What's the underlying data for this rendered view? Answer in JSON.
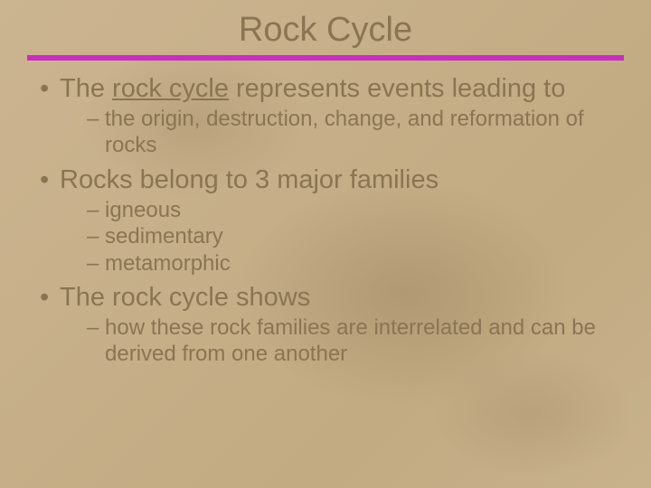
{
  "slide": {
    "title": "Rock Cycle",
    "accent_color": "#c72fbf",
    "text_color": "#8a7452",
    "background_base": "#c9b38e",
    "title_fontsize": 38,
    "bullet_fontsize": 29,
    "sub_fontsize": 24,
    "bullets": [
      {
        "pre": "The ",
        "underlined": "rock cycle",
        "post": " represents events leading to",
        "subs": [
          "the origin, destruction, change, and reformation of rocks"
        ]
      },
      {
        "pre": "Rocks belong to 3 major families",
        "underlined": "",
        "post": "",
        "subs": [
          "igneous",
          "sedimentary",
          "metamorphic"
        ]
      },
      {
        "pre": "The rock cycle shows",
        "underlined": "",
        "post": "",
        "subs": [
          "how these rock families are interrelated and can be derived from one another"
        ]
      }
    ]
  }
}
